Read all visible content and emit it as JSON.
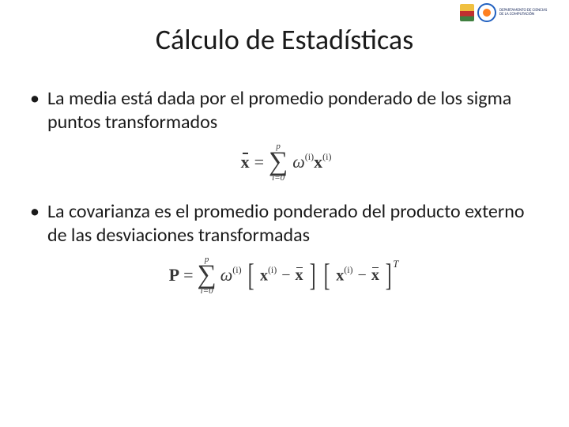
{
  "header": {
    "logo_dept_line1": "DEPARTAMENTO DE CIENCIAS",
    "logo_dept_line2": "DE LA COMPUTACIÓN"
  },
  "title": "Cálculo de Estadísticas",
  "bullet1": "La media está dada por el promedio ponderado de los sigma puntos transformados",
  "bullet2": "La covarianza es el promedio ponderado del producto externo de las desviaciones transformadas",
  "eq1": {
    "lhs": "x",
    "eq": "=",
    "sum_upper": "p",
    "sum_lower": "i=0",
    "omega": "ω",
    "sup_i": "(i)",
    "x": "x"
  },
  "eq2": {
    "lhs": "P",
    "eq": "=",
    "sum_upper": "p",
    "sum_lower": "i=0",
    "omega": "ω",
    "sup_i": "(i)",
    "x": "x",
    "xbar": "x",
    "minus": "−",
    "transpose": "T"
  },
  "style": {
    "title_fontsize": 36,
    "body_fontsize": 24,
    "eq_fontsize": 22,
    "title_color": "#1a1a1a",
    "text_color": "#1a1a1a",
    "eq_color": "#363636",
    "background": "#ffffff"
  }
}
